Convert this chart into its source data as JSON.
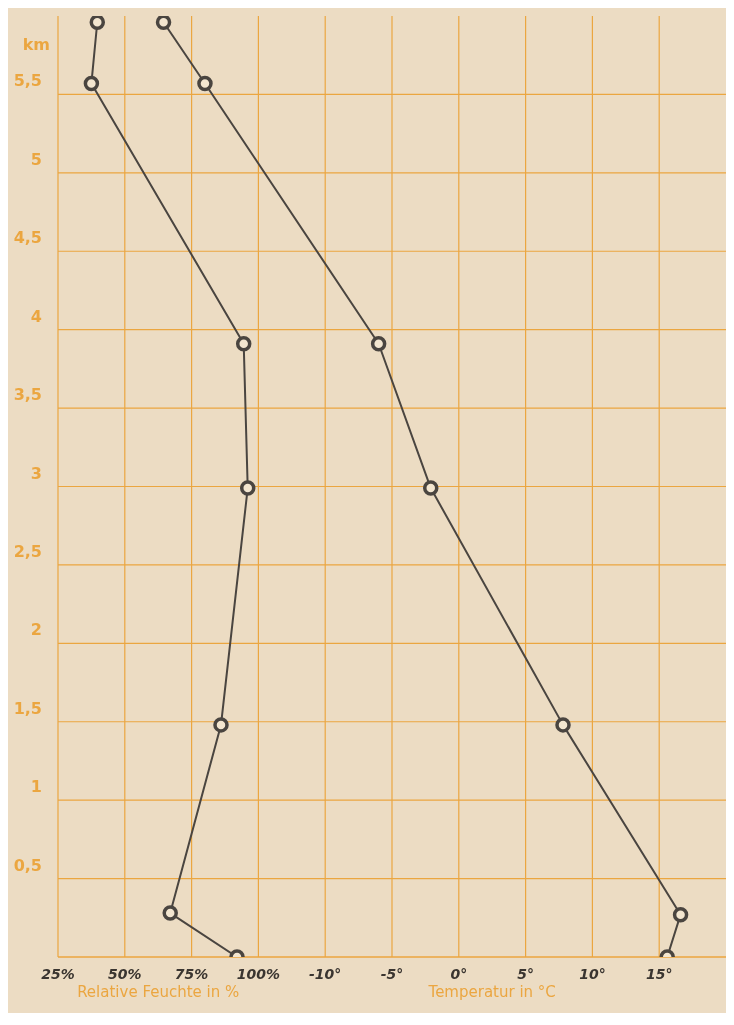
{
  "chart_data": {
    "type": "line",
    "xlabel": "Relative Feuchte in %",
    "x2label": "Temperatur in °C",
    "ylabel": "km",
    "xlim": [
      25,
      275
    ],
    "xticks": [
      {
        "value": 25,
        "label": "25%"
      },
      {
        "value": 50,
        "label": "50%"
      },
      {
        "value": 75,
        "label": "75%"
      },
      {
        "value": 100,
        "label": "100%"
      }
    ],
    "x2lim": [
      -30,
      20
    ],
    "x2ticks": [
      {
        "value": -10,
        "label": "-10°"
      },
      {
        "value": -5,
        "label": "-5°"
      },
      {
        "value": 0,
        "label": "0°"
      },
      {
        "value": 5,
        "label": "5°"
      },
      {
        "value": 10,
        "label": "10°"
      },
      {
        "value": 15,
        "label": "15°"
      }
    ],
    "ylim": [
      0,
      6
    ],
    "yticks": [
      {
        "value": 0,
        "label": null
      },
      {
        "value": 0.5,
        "label": "0,5"
      },
      {
        "value": 1,
        "label": "1"
      },
      {
        "value": 1.5,
        "label": "1,5"
      },
      {
        "value": 2,
        "label": "2"
      },
      {
        "value": 2.5,
        "label": "2,5"
      },
      {
        "value": 3,
        "label": "3"
      },
      {
        "value": 3.5,
        "label": "3,5"
      },
      {
        "value": 4,
        "label": "4"
      },
      {
        "value": 4.5,
        "label": "4,5"
      },
      {
        "value": 5,
        "label": "5"
      },
      {
        "value": 5.5,
        "label": "5,5"
      }
    ],
    "grid": true,
    "marker": "circle",
    "line_style": "solid",
    "series": [
      {
        "color": "#4a4540",
        "x": [
          92,
          67,
          86,
          96,
          94.5,
          37.5,
          39.7
        ],
        "values": [
          0,
          0.28,
          1.48,
          2.99,
          3.91,
          5.57,
          5.96
        ]
      },
      {
        "color": "#4a4540",
        "axis": "x2",
        "x": [
          15.6,
          16.6,
          7.8,
          -2.1,
          -6,
          -19,
          -22.1
        ],
        "values": [
          0,
          0.27,
          1.48,
          2.99,
          3.91,
          5.57,
          5.96
        ]
      }
    ]
  }
}
